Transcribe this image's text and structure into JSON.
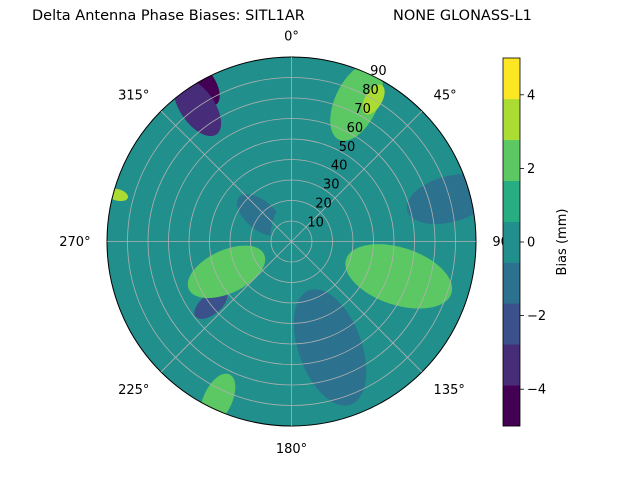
{
  "title_left": "Delta Antenna Phase Biases: SITL1AR",
  "title_right": "NONE GLONASS-L1",
  "colors": {
    "levels": [
      "#440154",
      "#472c7a",
      "#3b518b",
      "#2c718e",
      "#21908d",
      "#27ad81",
      "#5cc863",
      "#aadc32",
      "#fde725"
    ],
    "background_level": "#21908d"
  },
  "chart_data": {
    "type": "contour-polar",
    "subject": "Delta Antenna Phase Biases",
    "station": "SITL1AR",
    "signal": "NONE GLONASS-L1",
    "angular_axis": {
      "zero_location": "N",
      "direction": "clockwise",
      "tick_labels": [
        "0°",
        "45°",
        "90°",
        "135°",
        "180°",
        "225°",
        "270°",
        "315°"
      ]
    },
    "radial_axis": {
      "range": [
        0,
        90
      ],
      "tick_labels": [
        "10",
        "20",
        "30",
        "40",
        "50",
        "60",
        "70",
        "80",
        "90"
      ],
      "label_angle_deg": 22.5
    },
    "grid": true,
    "colorbar": {
      "label": "Bias (mm)",
      "range": [
        -5,
        5
      ],
      "level_step": 1,
      "tick_labels": [
        "−4",
        "−2",
        "0",
        "2",
        "4"
      ]
    },
    "regions": [
      {
        "level_mm": -4.5,
        "az_deg": 331,
        "zenith_deg": 87,
        "extent_deg": 8
      },
      {
        "level_mm": -3.5,
        "az_deg": 325,
        "zenith_deg": 80,
        "extent_deg": 12
      },
      {
        "level_mm": -2.5,
        "az_deg": 232,
        "zenith_deg": 50,
        "extent_deg": 7
      },
      {
        "level_mm": -2.5,
        "az_deg": 160,
        "zenith_deg": 55,
        "extent_deg": 10
      },
      {
        "level_mm": -2.5,
        "az_deg": 75,
        "zenith_deg": 80,
        "extent_deg": 8
      },
      {
        "level_mm": -1.5,
        "az_deg": 160,
        "zenith_deg": 55,
        "extent_deg": 22
      },
      {
        "level_mm": -1.5,
        "az_deg": 75,
        "zenith_deg": 80,
        "extent_deg": 16
      },
      {
        "level_mm": -1.5,
        "az_deg": 310,
        "zenith_deg": 20,
        "extent_deg": 10
      },
      {
        "level_mm": -0.5,
        "az_deg": 0,
        "zenith_deg": 0,
        "extent_deg": 15
      },
      {
        "level_mm": 1.5,
        "az_deg": 245,
        "zenith_deg": 35,
        "extent_deg": 15
      },
      {
        "level_mm": 1.5,
        "az_deg": 108,
        "zenith_deg": 55,
        "extent_deg": 20
      },
      {
        "level_mm": 1.5,
        "az_deg": 25,
        "zenith_deg": 75,
        "extent_deg": 15
      },
      {
        "level_mm": 1.5,
        "az_deg": 205,
        "zenith_deg": 85,
        "extent_deg": 10
      },
      {
        "level_mm": 2.5,
        "az_deg": 30,
        "zenith_deg": 80,
        "extent_deg": 6
      },
      {
        "level_mm": 2.5,
        "az_deg": 285,
        "zenith_deg": 88,
        "extent_deg": 4
      }
    ]
  }
}
